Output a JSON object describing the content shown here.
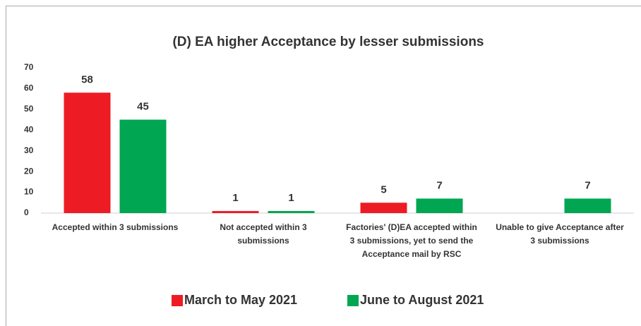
{
  "chart_data": {
    "type": "bar",
    "title": "(D) EA higher Acceptance by lesser submissions",
    "categories": [
      "Accepted within 3 submissions",
      "Not accepted within 3 submissions",
      "Factories' (D)EA accepted within 3 submissions, yet to send the  Acceptance mail by RSC",
      "Unable to give Acceptance after 3 submissions"
    ],
    "series": [
      {
        "name": "March to May 2021",
        "color": "#ed1c24",
        "values": [
          58,
          1,
          5,
          null
        ]
      },
      {
        "name": "June to August 2021",
        "color": "#00a651",
        "values": [
          45,
          1,
          7,
          7
        ]
      }
    ],
    "ylim": [
      0,
      70
    ],
    "yticks": [
      0,
      10,
      20,
      30,
      40,
      50,
      60,
      70
    ],
    "grid": false,
    "legend": "bottom"
  }
}
